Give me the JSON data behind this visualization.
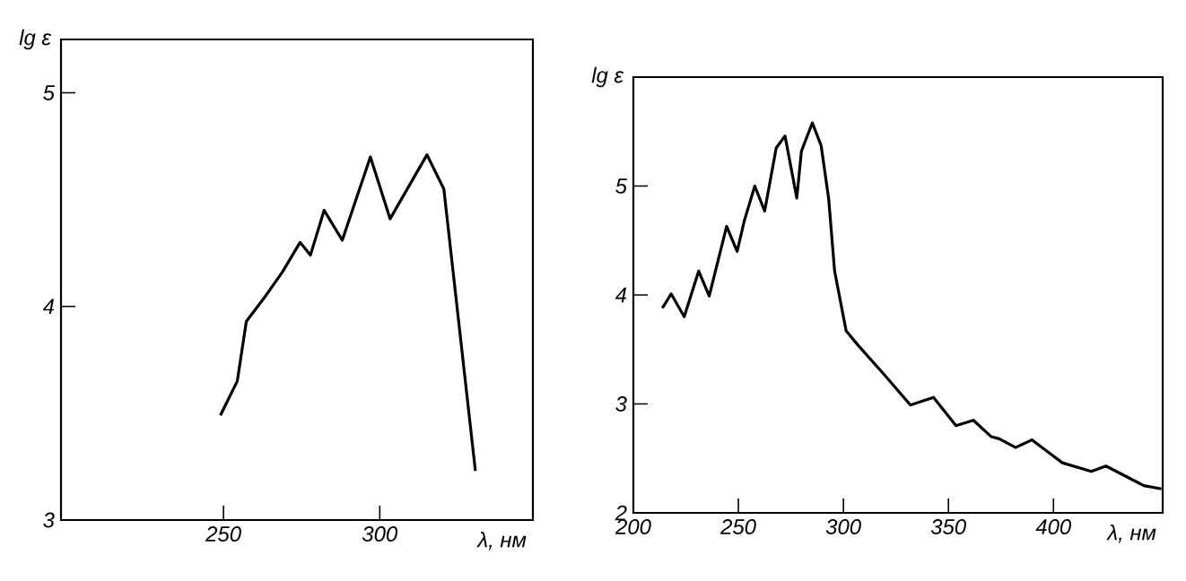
{
  "chart_data": [
    {
      "type": "line",
      "ylabel": "lg ε",
      "xlabel": "λ, нм",
      "xlim": [
        198,
        349
      ],
      "ylim": [
        3,
        5.25
      ],
      "xticks": [
        250,
        300
      ],
      "yticks": [
        3,
        4,
        5
      ],
      "color": "#000000",
      "grid": false,
      "x": [
        249,
        254.4,
        257.3,
        263,
        268.8,
        274.5,
        277.8,
        282.2,
        288,
        297,
        303.3,
        315.1,
        320.5,
        330.6
      ],
      "values": [
        3.49,
        3.65,
        3.93,
        4.04,
        4.16,
        4.3,
        4.24,
        4.45,
        4.31,
        4.7,
        4.41,
        4.71,
        4.55,
        3.23
      ]
    },
    {
      "type": "line",
      "ylabel": "lg ε",
      "xlabel": "λ, нм",
      "xlim": [
        200,
        452
      ],
      "ylim": [
        2,
        6
      ],
      "xticks": [
        200,
        250,
        300,
        350,
        400
      ],
      "yticks": [
        2,
        3,
        4,
        5
      ],
      "color": "#000000",
      "grid": false,
      "x": [
        213.8,
        218,
        224.2,
        231.1,
        236.1,
        244.4,
        249.4,
        252.8,
        257.8,
        262.5,
        268,
        272.2,
        277.8,
        280,
        285.2,
        289.4,
        293,
        295.8,
        301.3,
        306.9,
        319.4,
        331.9,
        342.9,
        353.6,
        361.9,
        370.3,
        374.2,
        382,
        389.7,
        404.2,
        418,
        425,
        443,
        451.4
      ],
      "values": [
        3.88,
        4.01,
        3.8,
        4.22,
        3.99,
        4.63,
        4.4,
        4.68,
        5.0,
        4.77,
        5.35,
        5.46,
        4.89,
        5.32,
        5.58,
        5.37,
        4.88,
        4.22,
        3.67,
        3.54,
        3.27,
        2.99,
        3.06,
        2.8,
        2.85,
        2.7,
        2.68,
        2.6,
        2.67,
        2.46,
        2.38,
        2.43,
        2.25,
        2.22
      ]
    }
  ]
}
